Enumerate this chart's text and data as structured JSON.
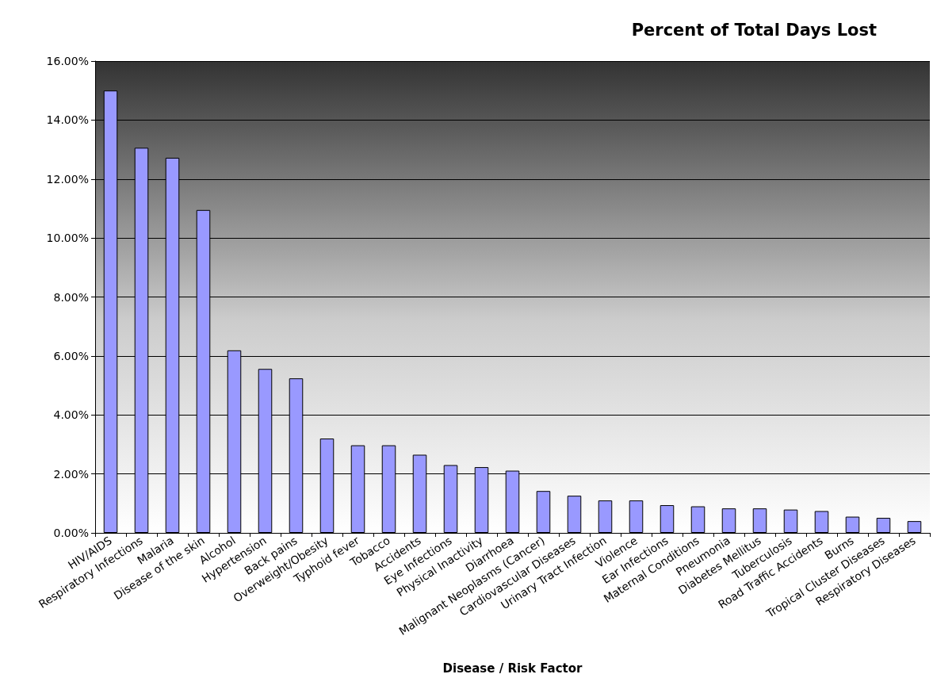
{
  "chart_data": {
    "type": "bar",
    "title": "Percent of Total Days Lost",
    "xlabel": "Disease / Risk Factor",
    "categories": [
      "HIV/AIDS",
      "Respiratory Infections",
      "Malaria",
      "Disease of the skin",
      "Alcohol",
      "Hypertension",
      "Back pains",
      "Overweight/Obesity",
      "Typhoid fever",
      "Tobacco",
      "Accidents",
      "Eye Infections",
      "Physical Inactivity",
      "Diarrhoea",
      "Malignant Neoplasms (Cancer)",
      "Cardiovascular Diseases",
      "Urinary Tract Infection",
      "Violence",
      "Ear Infections",
      "Maternal Conditions",
      "Pneumonia",
      "Diabetes Mellitus",
      "Tuberculosis",
      "Road Traffic Accidents",
      "Burns",
      "Tropical Cluster Diseases",
      "Respiratory Diseases"
    ],
    "values": [
      15.0,
      13.06,
      12.72,
      10.95,
      6.19,
      5.56,
      5.24,
      3.2,
      2.97,
      2.97,
      2.65,
      2.3,
      2.23,
      2.11,
      1.42,
      1.26,
      1.1,
      1.1,
      0.94,
      0.9,
      0.83,
      0.83,
      0.79,
      0.74,
      0.55,
      0.51,
      0.4
    ],
    "color": "#9999ff",
    "ylim": [
      0,
      16
    ],
    "yticks": [
      {
        "value": 0,
        "label": "0.00%"
      },
      {
        "value": 2,
        "label": "2.00%"
      },
      {
        "value": 4,
        "label": "4.00%"
      },
      {
        "value": 6,
        "label": "6.00%"
      },
      {
        "value": 8,
        "label": "8.00%"
      },
      {
        "value": 10,
        "label": "10.00%"
      },
      {
        "value": 12,
        "label": "12.00%"
      },
      {
        "value": 14,
        "label": "14.00%"
      },
      {
        "value": 16,
        "label": "16.00%"
      }
    ],
    "grid": "y"
  }
}
